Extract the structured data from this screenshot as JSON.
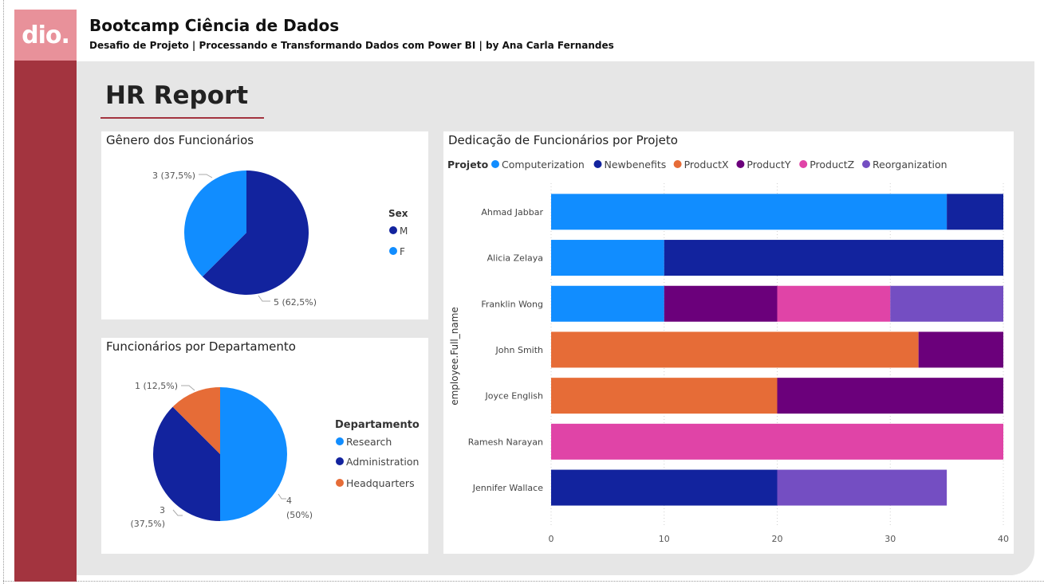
{
  "header": {
    "logo_text": "dio.",
    "title": "Bootcamp Ciência de Dados",
    "subtitle": "Desafio de Projeto | Processando e Transformando Dados com Power BI | by Ana Carla Fernandes"
  },
  "report": {
    "title": "HR Report"
  },
  "colors": {
    "sidebar": "#a3343f",
    "logo_bg": "#e8919a",
    "canvas_bg": "#e6e6e6",
    "light_blue": "#118dff",
    "dark_blue": "#12239e",
    "orange": "#e66c37",
    "purple": "#6b007b",
    "pink": "#e044a7",
    "violet": "#744ec2"
  },
  "gender_chart": {
    "title": "Gênero dos Funcionários",
    "legend_title": "Sex",
    "chart_data": {
      "type": "pie",
      "slices": [
        {
          "name": "M",
          "value": 5,
          "label": "5 (62,5%)",
          "color": "#12239e"
        },
        {
          "name": "F",
          "value": 3,
          "label": "3 (37,5%)",
          "color": "#118dff"
        }
      ]
    }
  },
  "dept_chart": {
    "title": "Funcionários por Departamento",
    "legend_title": "Departamento",
    "chart_data": {
      "type": "pie",
      "slices": [
        {
          "name": "Research",
          "value": 4,
          "label_line1": "4",
          "label_line2": "(50%)",
          "color": "#118dff"
        },
        {
          "name": "Administration",
          "value": 3,
          "label_line1": "3",
          "label_line2": "(37,5%)",
          "color": "#12239e"
        },
        {
          "name": "Headquarters",
          "value": 1,
          "label_line1": "1 (12,5%)",
          "label_line2": "",
          "color": "#e66c37"
        }
      ]
    }
  },
  "project_chart": {
    "title": "Dedicação de Funcionários por Projeto",
    "legend_title": "Projeto",
    "chart_data": {
      "type": "bar",
      "orientation": "horizontal",
      "stacked": true,
      "ylabel": "employee.Full_name",
      "xlim": [
        0,
        40
      ],
      "x_ticks": [
        0,
        10,
        20,
        30,
        40
      ],
      "categories": [
        "Ahmad Jabbar",
        "Alicia Zelaya",
        "Franklin Wong",
        "John Smith",
        "Joyce English",
        "Ramesh Narayan",
        "Jennifer Wallace"
      ],
      "series": [
        {
          "name": "Computerization",
          "color": "#118dff",
          "values": [
            35,
            10,
            10,
            0,
            0,
            0,
            0
          ]
        },
        {
          "name": "Newbenefits",
          "color": "#12239e",
          "values": [
            5,
            30,
            0,
            0,
            0,
            0,
            20
          ]
        },
        {
          "name": "ProductX",
          "color": "#e66c37",
          "values": [
            0,
            0,
            0,
            32.5,
            20,
            0,
            0
          ]
        },
        {
          "name": "ProductY",
          "color": "#6b007b",
          "values": [
            0,
            0,
            10,
            7.5,
            20,
            0,
            0
          ]
        },
        {
          "name": "ProductZ",
          "color": "#e044a7",
          "values": [
            0,
            0,
            10,
            0,
            0,
            40,
            0
          ]
        },
        {
          "name": "Reorganization",
          "color": "#744ec2",
          "values": [
            0,
            0,
            10,
            0,
            0,
            0,
            15
          ]
        }
      ]
    }
  }
}
